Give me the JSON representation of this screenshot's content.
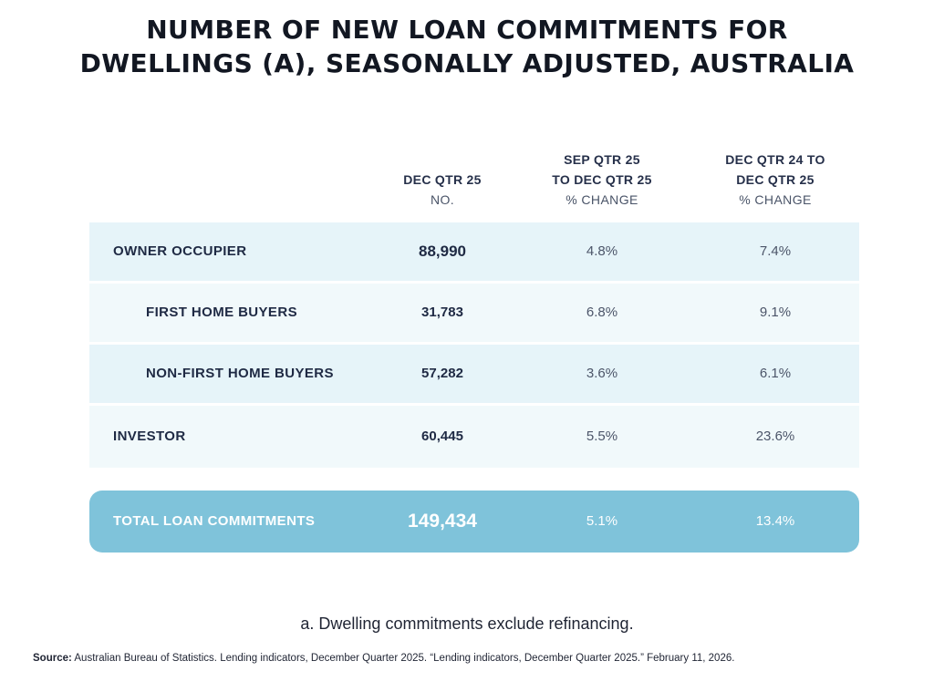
{
  "title": {
    "line1": "NUMBER OF NEW LOAN COMMITMENTS FOR",
    "line2": "DWELLINGS (A), SEASONALLY ADJUSTED, AUSTRALIA"
  },
  "chart_data": {
    "type": "table",
    "columns": [
      {
        "heading_lines": [
          "DEC QTR 25"
        ],
        "unit": "NO."
      },
      {
        "heading_lines": [
          "SEP QTR 25",
          "TO DEC QTR 25"
        ],
        "unit": "% CHANGE"
      },
      {
        "heading_lines": [
          "DEC QTR 24 TO",
          "DEC QTR 25"
        ],
        "unit": "% CHANGE"
      }
    ],
    "rows": [
      {
        "label": "OWNER OCCUPIER",
        "values": [
          "88,990",
          "4.8%",
          "7.4%"
        ]
      },
      {
        "label": "FIRST HOME BUYERS",
        "values": [
          "31,783",
          "6.8%",
          "9.1%"
        ]
      },
      {
        "label": "NON-FIRST HOME BUYERS",
        "values": [
          "57,282",
          "3.6%",
          "6.1%"
        ]
      },
      {
        "label": "INVESTOR",
        "values": [
          "60,445",
          "5.5%",
          "23.6%"
        ]
      }
    ],
    "total": {
      "label": "TOTAL LOAN COMMITMENTS",
      "values": [
        "149,434",
        "5.1%",
        "13.4%"
      ]
    }
  },
  "footnote": "a. Dwelling commitments exclude refinancing.",
  "source": {
    "label": "Source:",
    "text": "Australian Bureau of Statistics. Lending indicators, December Quarter 2025. “Lending indicators, December Quarter 2025.” February 11, 2026."
  },
  "colors": {
    "row_light": "#e6f4f9",
    "row_pale": "#f1f9fb",
    "total_bg": "#7fc3da",
    "text_dark": "#1f2a44"
  }
}
